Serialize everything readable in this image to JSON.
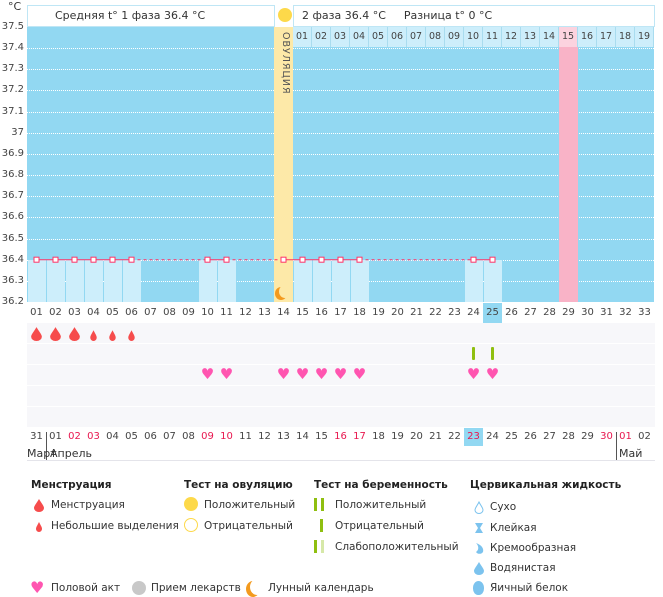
{
  "header": {
    "unit": "°C",
    "phase1": "Средняя t° 1 фаза 36.4 °C",
    "phase2": "2 фаза 36.4 °C",
    "difference": "Разница t° 0 °C",
    "ovulation_label": "ОВУЛЯЦИЯ"
  },
  "colors": {
    "dark": "#92d8f2",
    "light": "#cdeefb",
    "ovulation": "#fde9a8",
    "pink": "#f9b3c7",
    "line": "#ff3366",
    "today": "#92d8f2",
    "weekend": "#e8174f",
    "drop": "#f64c4c",
    "heart": "#ff55b0",
    "test": "#8fbf10"
  },
  "chart_data": {
    "type": "line",
    "ylim": [
      36.2,
      37.5
    ],
    "yticks": [
      "37.5",
      "37.4",
      "37.3",
      "37.2",
      "37.1",
      "37",
      "36.9",
      "36.8",
      "36.7",
      "36.6",
      "36.5",
      "36.4",
      "36.3",
      "36.2"
    ],
    "grid": true,
    "cycle_days": [
      "01",
      "02",
      "03",
      "04",
      "05",
      "06",
      "07",
      "08",
      "09",
      "10",
      "11",
      "12",
      "13",
      "14",
      "15",
      "16",
      "17",
      "18",
      "19",
      "20",
      "21",
      "22",
      "23",
      "24",
      "25",
      "26",
      "27",
      "28",
      "29",
      "30",
      "31",
      "32",
      "33"
    ],
    "temperatures": [
      {
        "day": 1,
        "value": 36.4
      },
      {
        "day": 2,
        "value": 36.4
      },
      {
        "day": 3,
        "value": 36.4
      },
      {
        "day": 4,
        "value": 36.4
      },
      {
        "day": 5,
        "value": 36.4
      },
      {
        "day": 6,
        "value": 36.4
      },
      {
        "day": 10,
        "value": 36.4
      },
      {
        "day": 11,
        "value": 36.4
      },
      {
        "day": 14,
        "value": 36.4
      },
      {
        "day": 15,
        "value": 36.4
      },
      {
        "day": 16,
        "value": 36.4
      },
      {
        "day": 17,
        "value": 36.4
      },
      {
        "day": 18,
        "value": 36.4
      },
      {
        "day": 24,
        "value": 36.4
      },
      {
        "day": 25,
        "value": 36.4
      }
    ],
    "ovulation_day": 14,
    "post_ovulation_days": [
      "01",
      "02",
      "03",
      "04",
      "05",
      "06",
      "07",
      "08",
      "09",
      "10",
      "11",
      "12",
      "13",
      "14",
      "15",
      "16",
      "17",
      "18",
      "19"
    ],
    "expected_period_day": 29,
    "current_cycle_day": 25,
    "dates": [
      {
        "d": "31",
        "w": false
      },
      {
        "d": "01",
        "w": false
      },
      {
        "d": "02",
        "w": true
      },
      {
        "d": "03",
        "w": true
      },
      {
        "d": "04",
        "w": false
      },
      {
        "d": "05",
        "w": false
      },
      {
        "d": "06",
        "w": false
      },
      {
        "d": "07",
        "w": false
      },
      {
        "d": "08",
        "w": false
      },
      {
        "d": "09",
        "w": true
      },
      {
        "d": "10",
        "w": true
      },
      {
        "d": "11",
        "w": false
      },
      {
        "d": "12",
        "w": false
      },
      {
        "d": "13",
        "w": false
      },
      {
        "d": "14",
        "w": false
      },
      {
        "d": "15",
        "w": false
      },
      {
        "d": "16",
        "w": true
      },
      {
        "d": "17",
        "w": true
      },
      {
        "d": "18",
        "w": false
      },
      {
        "d": "19",
        "w": false
      },
      {
        "d": "20",
        "w": false
      },
      {
        "d": "21",
        "w": false
      },
      {
        "d": "22",
        "w": false
      },
      {
        "d": "23",
        "w": true
      },
      {
        "d": "24",
        "w": false
      },
      {
        "d": "25",
        "w": false
      },
      {
        "d": "26",
        "w": false
      },
      {
        "d": "27",
        "w": false
      },
      {
        "d": "28",
        "w": false
      },
      {
        "d": "29",
        "w": false
      },
      {
        "d": "30",
        "w": true
      },
      {
        "d": "01",
        "w": true
      },
      {
        "d": "02",
        "w": false
      }
    ],
    "months": [
      "Март",
      "Апрель",
      "Май"
    ],
    "menstruation_heavy": [
      1,
      2,
      3
    ],
    "menstruation_light": [
      4,
      5,
      6
    ],
    "pregnancy_test_negative": [
      24,
      25
    ],
    "intercourse": [
      10,
      11,
      14,
      15,
      16,
      17,
      18,
      24,
      25
    ],
    "moon": [
      14
    ]
  },
  "legend": {
    "menstruation": {
      "title": "Менструация",
      "items": [
        "Менструация",
        "Небольшие выделения"
      ]
    },
    "ovulation_test": {
      "title": "Тест на овуляцию",
      "items": [
        "Положительный",
        "Отрицательный"
      ]
    },
    "pregnancy_test": {
      "title": "Тест на беременность",
      "items": [
        "Положительный",
        "Отрицательный",
        "Слабоположительный"
      ]
    },
    "cervical": {
      "title": "Цервикальная жидкость",
      "items": [
        "Сухо",
        "Клейкая",
        "Кремообразная",
        "Водянистая",
        "Яичный белок"
      ]
    },
    "bottom": [
      "Половой акт",
      "Прием лекарств",
      "Лунный календарь"
    ]
  }
}
